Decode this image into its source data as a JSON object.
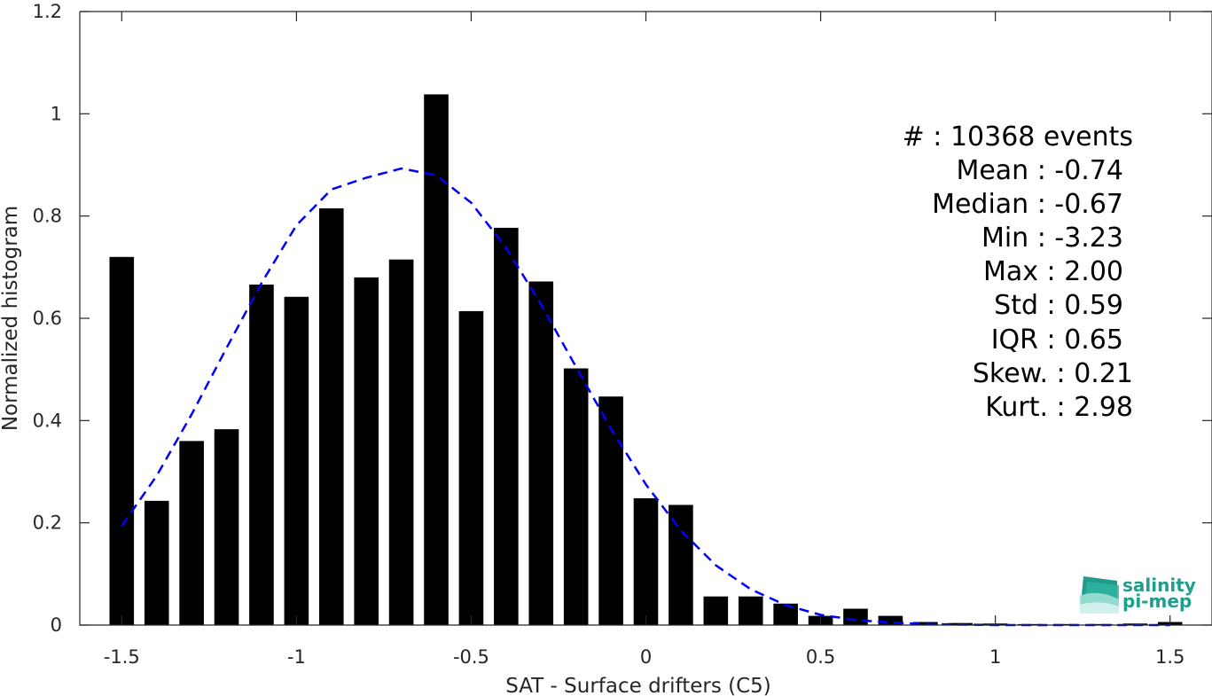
{
  "chart_data": {
    "type": "bar",
    "xlabel": "SAT - Surface drifters (C5)",
    "ylabel": "Normalized histogram",
    "xlim": [
      -1.62,
      1.62
    ],
    "ylim": [
      0,
      1.2
    ],
    "x_ticks": [
      -1.5,
      -1,
      -0.5,
      0,
      0.5,
      1,
      1.5
    ],
    "x_tick_labels": [
      "-1.5",
      "-1",
      "-0.5",
      "0",
      "0.5",
      "1",
      "1.5"
    ],
    "y_ticks": [
      0,
      0.2,
      0.4,
      0.6,
      0.8,
      1,
      1.2
    ],
    "y_tick_labels": [
      "0",
      "0.2",
      "0.4",
      "0.6",
      "0.8",
      "1",
      "1.2"
    ],
    "grid": false,
    "bar_width": 0.07,
    "bar_color": "#000000",
    "series": [
      {
        "type": "bar",
        "x": [
          -1.5,
          -1.4,
          -1.3,
          -1.2,
          -1.1,
          -1.0,
          -0.9,
          -0.8,
          -0.7,
          -0.6,
          -0.5,
          -0.4,
          -0.3,
          -0.2,
          -0.1,
          0.0,
          0.1,
          0.2,
          0.3,
          0.4,
          0.5,
          0.6,
          0.7,
          0.8,
          0.9,
          1.0,
          1.1,
          1.2,
          1.3,
          1.4,
          1.5
        ],
        "values": [
          0.72,
          0.243,
          0.36,
          0.383,
          0.666,
          0.642,
          0.815,
          0.68,
          0.715,
          1.038,
          0.614,
          0.777,
          0.672,
          0.502,
          0.447,
          0.248,
          0.235,
          0.056,
          0.056,
          0.042,
          0.018,
          0.032,
          0.018,
          0.006,
          0.004,
          0.003,
          0.002,
          0.002,
          0.002,
          0.003,
          0.006
        ]
      },
      {
        "type": "line",
        "style": "dashed",
        "color": "#0000ff",
        "x": [
          -1.5,
          -1.4,
          -1.3,
          -1.2,
          -1.1,
          -1.0,
          -0.9,
          -0.8,
          -0.7,
          -0.6,
          -0.5,
          -0.4,
          -0.3,
          -0.2,
          -0.1,
          0.0,
          0.1,
          0.2,
          0.3,
          0.4,
          0.5,
          0.6,
          0.7,
          0.8,
          0.9,
          1.0,
          1.1,
          1.2,
          1.3,
          1.4,
          1.5
        ],
        "values": [
          0.194,
          0.292,
          0.412,
          0.542,
          0.669,
          0.782,
          0.852,
          0.875,
          0.893,
          0.88,
          0.826,
          0.738,
          0.627,
          0.505,
          0.384,
          0.275,
          0.185,
          0.117,
          0.07,
          0.039,
          0.02,
          0.01,
          0.005,
          0.002,
          0.001,
          0.0,
          0.0,
          0.0,
          0.0,
          0.0,
          0.0
        ]
      }
    ]
  },
  "stats": [
    "#  : 10368 events",
    "Mean : -0.74",
    "Median : -0.67",
    "Min : -3.23",
    "Max : 2.00",
    "Std : 0.59",
    "IQR : 0.65",
    "Skew. : 0.21",
    "Kurt. : 2.98"
  ],
  "logo": {
    "line1": "salinity",
    "line2": "pi-mep",
    "color": "#1e9e8c"
  }
}
